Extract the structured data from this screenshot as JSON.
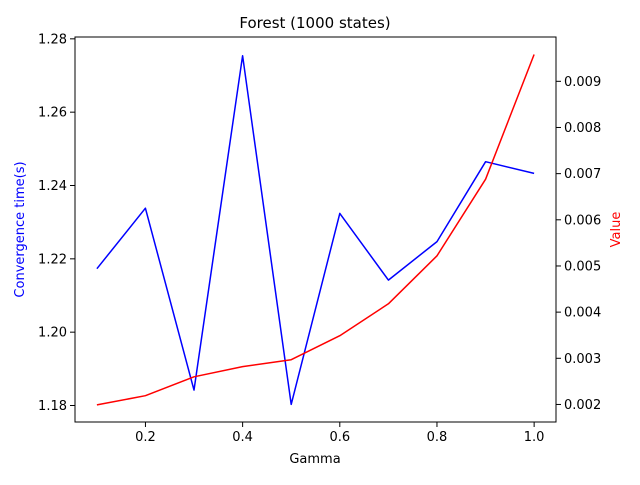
{
  "chart_data": {
    "type": "line",
    "title": "Forest (1000 states)",
    "xlabel": "Gamma",
    "ylabel_left": "Convergence time(s)",
    "ylabel_right": "Value",
    "x": [
      0.1,
      0.2,
      0.3,
      0.4,
      0.5,
      0.6,
      0.7,
      0.8,
      0.9,
      1.0
    ],
    "xlim": [
      0.055,
      1.045
    ],
    "x_ticks": [
      0.2,
      0.4,
      0.6,
      0.8,
      1.0
    ],
    "x_tick_labels": [
      "0.2",
      "0.4",
      "0.6",
      "0.8",
      "1.0"
    ],
    "ylim_left": [
      1.1755,
      1.2805
    ],
    "y_ticks_left": [
      1.18,
      1.2,
      1.22,
      1.24,
      1.26,
      1.28
    ],
    "y_tick_labels_left": [
      "1.18",
      "1.20",
      "1.22",
      "1.24",
      "1.26",
      "1.28"
    ],
    "ylim_right": [
      0.00162,
      0.00996
    ],
    "y_ticks_right": [
      0.002,
      0.003,
      0.004,
      0.005,
      0.006,
      0.007,
      0.008,
      0.009
    ],
    "y_tick_labels_right": [
      "0.002",
      "0.003",
      "0.004",
      "0.005",
      "0.006",
      "0.007",
      "0.008",
      "0.009"
    ],
    "grid": false,
    "series": [
      {
        "axis": "left",
        "color": "#0000ff",
        "values": [
          1.2173,
          1.2338,
          1.1842,
          1.2754,
          1.1803,
          1.2324,
          1.2142,
          1.2247,
          1.2465,
          1.2433
        ]
      },
      {
        "axis": "right",
        "color": "#ff0000",
        "values": [
          0.00199,
          0.00219,
          0.0026,
          0.00282,
          0.00297,
          0.00349,
          0.00418,
          0.00522,
          0.00688,
          0.00958
        ]
      }
    ],
    "colors": {
      "left_axis_label": "#0000ff",
      "right_axis_label": "#ff0000",
      "axes": "#000000"
    }
  }
}
